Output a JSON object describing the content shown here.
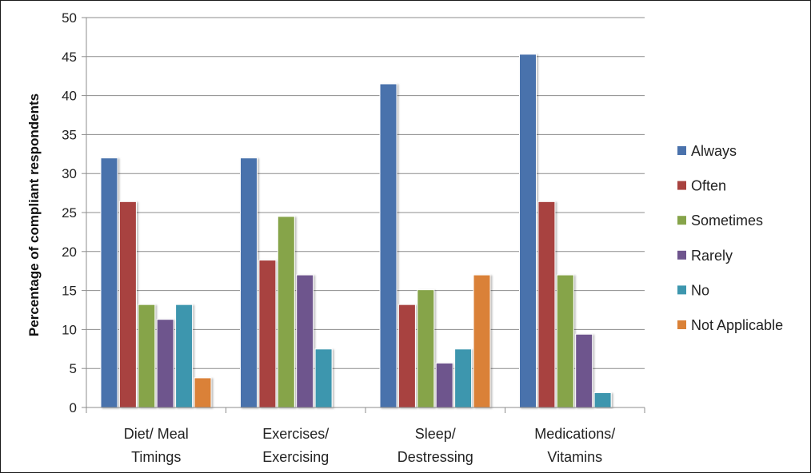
{
  "chart_data": {
    "type": "bar",
    "title": "",
    "xlabel": "",
    "ylabel": "Percentage of compliant respondents",
    "ylim": [
      0,
      50
    ],
    "yticks": [
      "0",
      "5",
      "10",
      "15",
      "20",
      "25",
      "30",
      "35",
      "40",
      "45",
      "50"
    ],
    "grid": true,
    "legend_position": "right",
    "categories": [
      [
        "Diet/ Meal",
        "Timings"
      ],
      [
        "Exercises/",
        "Exercising"
      ],
      [
        "Sleep/",
        "Destressing"
      ],
      [
        "Medications/",
        "Vitamins"
      ]
    ],
    "series": [
      {
        "name": "Always",
        "color": "#4a72ac",
        "values": [
          32.0,
          32.0,
          41.5,
          45.3
        ]
      },
      {
        "name": "Often",
        "color": "#a8423f",
        "values": [
          26.4,
          18.9,
          13.2,
          26.4
        ]
      },
      {
        "name": "Sometimes",
        "color": "#86a44a",
        "values": [
          13.2,
          24.5,
          15.1,
          17.0
        ]
      },
      {
        "name": "Rarely",
        "color": "#6e548d",
        "values": [
          11.3,
          17.0,
          5.7,
          9.4
        ]
      },
      {
        "name": "No",
        "color": "#3d96ae",
        "values": [
          13.2,
          7.5,
          7.5,
          1.9
        ]
      },
      {
        "name": "Not Applicable",
        "color": "#da8137",
        "values": [
          3.8,
          null,
          17.0,
          null
        ]
      }
    ]
  }
}
